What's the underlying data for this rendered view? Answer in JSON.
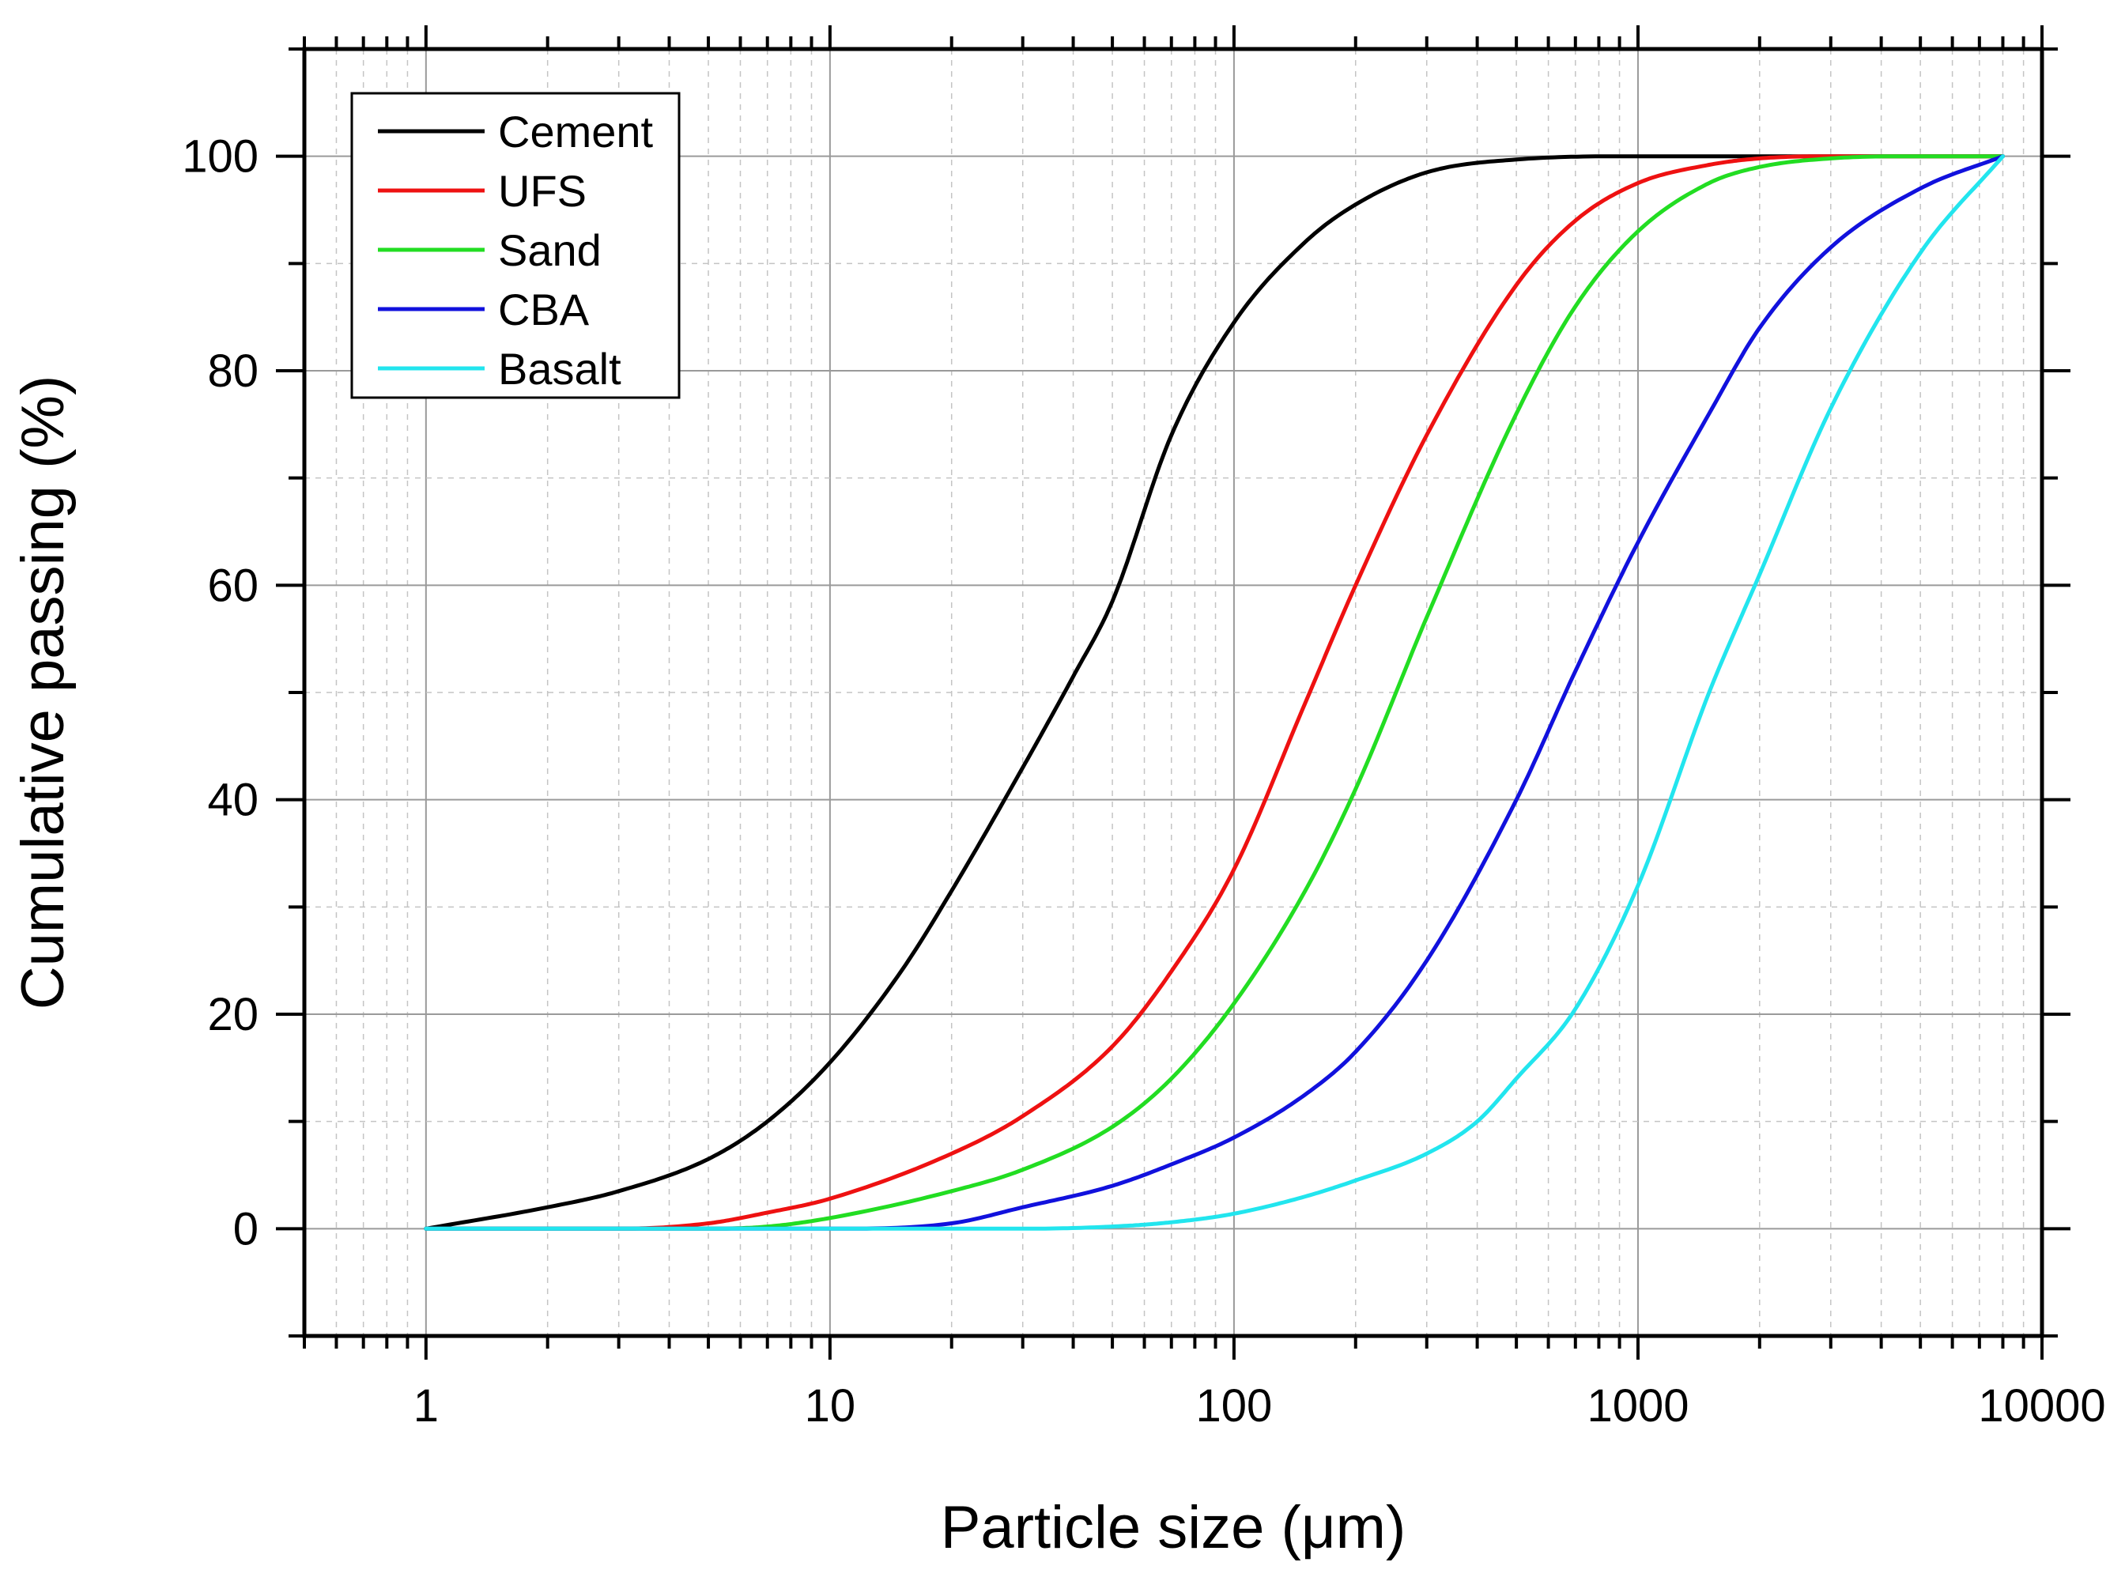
{
  "chart_data": {
    "type": "line",
    "title": "",
    "xlabel": "Particle size (μm)",
    "ylabel": "Cumulative passing (%)",
    "xscale": "log",
    "xlim": [
      0.5,
      10000
    ],
    "ylim": [
      -10,
      110
    ],
    "xticks": [
      1,
      10,
      100,
      1000,
      10000
    ],
    "xtick_labels": [
      "1",
      "10",
      "100",
      "1000",
      "10000"
    ],
    "yticks": [
      0,
      20,
      40,
      60,
      80,
      100
    ],
    "ytick_labels": [
      "0",
      "20",
      "40",
      "60",
      "80",
      "100"
    ],
    "grid": true,
    "legend_position": "top-left",
    "series": [
      {
        "name": "Cement",
        "color": "#000000",
        "x": [
          1,
          2,
          3,
          5,
          7,
          10,
          15,
          20,
          30,
          40,
          50,
          70,
          100,
          150,
          200,
          300,
          500,
          1000,
          2000,
          8000
        ],
        "y": [
          0,
          2,
          3.5,
          6.5,
          10,
          15.5,
          24,
          31.5,
          43,
          51.5,
          58.5,
          74,
          84.5,
          92,
          95.5,
          98.5,
          99.7,
          100,
          100,
          100
        ]
      },
      {
        "name": "UFS",
        "color": "#ee1111",
        "x": [
          1,
          3,
          5,
          7,
          10,
          20,
          30,
          50,
          70,
          100,
          150,
          200,
          300,
          500,
          700,
          1000,
          1500,
          2000,
          3000,
          8000
        ],
        "y": [
          0,
          0,
          0.5,
          1.5,
          2.8,
          7,
          10.5,
          17,
          24,
          33.5,
          49,
          60,
          74,
          88,
          94,
          97.5,
          99.2,
          99.8,
          100,
          100
        ]
      },
      {
        "name": "Sand",
        "color": "#22dd22",
        "x": [
          1,
          5,
          7,
          10,
          20,
          30,
          50,
          70,
          100,
          150,
          200,
          300,
          500,
          700,
          1000,
          1500,
          2000,
          3000,
          5000,
          8000
        ],
        "y": [
          0,
          0,
          0.2,
          1,
          3.5,
          5.5,
          9.5,
          14,
          21,
          31.5,
          41,
          57,
          76,
          86,
          93,
          97.5,
          99,
          99.8,
          100,
          100
        ]
      },
      {
        "name": "CBA",
        "color": "#1111dd",
        "x": [
          1,
          10,
          20,
          30,
          50,
          70,
          100,
          150,
          200,
          300,
          500,
          700,
          1000,
          1500,
          2000,
          3000,
          5000,
          8000
        ],
        "y": [
          0,
          0,
          0.5,
          2,
          4,
          6,
          8.5,
          12.5,
          16.5,
          25,
          40,
          52,
          64,
          76,
          84,
          91.5,
          97,
          100
        ]
      },
      {
        "name": "Basalt",
        "color": "#22e5ee",
        "x": [
          1,
          30,
          50,
          70,
          100,
          150,
          200,
          300,
          400,
          500,
          700,
          1000,
          1500,
          2000,
          3000,
          5000,
          8000
        ],
        "y": [
          0,
          0,
          0.2,
          0.6,
          1.4,
          3,
          4.5,
          7,
          10,
          14,
          20.5,
          32,
          50,
          61,
          76.5,
          91,
          100
        ]
      }
    ]
  }
}
